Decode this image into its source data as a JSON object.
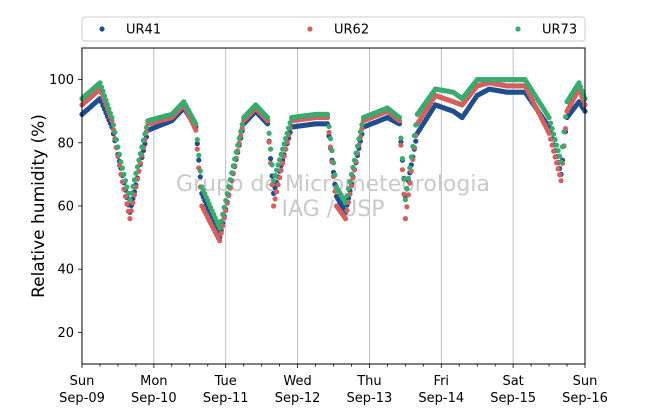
{
  "chart_data": {
    "type": "scatter",
    "ylabel": "Relative humidity (%)",
    "ylim": [
      10,
      110
    ],
    "yticks": [
      20,
      40,
      60,
      80,
      100
    ],
    "xlim": [
      "2018-09-09 00:00",
      "2018-09-16 00:00"
    ],
    "xticks": [
      {
        "day": "Sun",
        "date": "Sep-09"
      },
      {
        "day": "Mon",
        "date": "Sep-10"
      },
      {
        "day": "Tue",
        "date": "Sep-11"
      },
      {
        "day": "Wed",
        "date": "Sep-12"
      },
      {
        "day": "Thu",
        "date": "Sep-13"
      },
      {
        "day": "Fri",
        "date": "Sep-14"
      },
      {
        "day": "Sat",
        "date": "Sep-15"
      },
      {
        "day": "Sun",
        "date": "Sep-16"
      }
    ],
    "grid": "x-major",
    "legend": "top, horizontal, 3 columns",
    "watermark": [
      "Grupo de Micrometeorologia",
      "IAG / USP"
    ],
    "x_hours": [
      0,
      6,
      10,
      13,
      16,
      22,
      30,
      34,
      38,
      40,
      46,
      54,
      58,
      62,
      64,
      70,
      78,
      82,
      85,
      88,
      94,
      102,
      106,
      108,
      112,
      118,
      124,
      127,
      132,
      136,
      142,
      148,
      156,
      160,
      162,
      166,
      168
    ],
    "series": [
      {
        "name": "UR41",
        "color": "#1f4e8c",
        "values": [
          89,
          94,
          85,
          72,
          58,
          84,
          87,
          91,
          85,
          64,
          50,
          86,
          90,
          86,
          64,
          85,
          86,
          86,
          63,
          58,
          85,
          88,
          86,
          63,
          83,
          92,
          90,
          88,
          95,
          97,
          96,
          96,
          85,
          70,
          88,
          93,
          90
        ]
      },
      {
        "name": "UR62",
        "color": "#d1605e",
        "values": [
          92,
          97,
          87,
          70,
          56,
          86,
          88,
          92,
          84,
          60,
          49,
          87,
          91,
          87,
          60,
          87,
          88,
          88,
          60,
          56,
          87,
          90,
          87,
          56,
          86,
          95,
          93,
          92,
          98,
          99,
          98,
          98,
          83,
          68,
          90,
          97,
          92
        ]
      },
      {
        "name": "UR73",
        "color": "#3aaa6e",
        "values": [
          94,
          99,
          88,
          74,
          62,
          87,
          89,
          93,
          86,
          66,
          53,
          88,
          92,
          88,
          68,
          88,
          89,
          89,
          66,
          61,
          88,
          91,
          88,
          62,
          89,
          97,
          96,
          94,
          100,
          100,
          100,
          100,
          88,
          74,
          93,
          99,
          94
        ]
      }
    ]
  }
}
